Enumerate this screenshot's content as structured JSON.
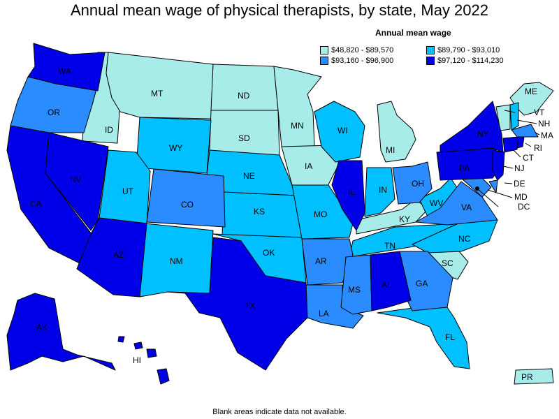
{
  "title": "Annual mean wage of physical therapists, by state, May 2022",
  "legend": {
    "title": "Annual mean wage",
    "items": [
      {
        "label": "$48,820 - $89,570",
        "color": "#a8ecea"
      },
      {
        "label": "$89,790 - $93,010",
        "color": "#00c0ff"
      },
      {
        "label": "$93,160 - $96,900",
        "color": "#2b8cff"
      },
      {
        "label": "$97,120 - $114,230",
        "color": "#0000e8"
      }
    ]
  },
  "footnote": "Blank areas indicate data not available.",
  "states": {
    "WA": "WA",
    "OR": "OR",
    "CA": "CA",
    "NV": "NV",
    "ID": "ID",
    "MT": "MT",
    "WY": "WY",
    "UT": "UT",
    "AZ": "AZ",
    "CO": "CO",
    "NM": "NM",
    "ND": "ND",
    "SD": "SD",
    "NE": "NE",
    "KS": "KS",
    "OK": "OK",
    "TX": "TX",
    "MN": "MN",
    "IA": "IA",
    "MO": "MO",
    "AR": "AR",
    "LA": "LA",
    "WI": "WI",
    "IL": "IL",
    "MI": "MI",
    "IN": "IN",
    "OH": "OH",
    "KY": "KY",
    "TN": "TN",
    "MS": "MS",
    "AL": "AL",
    "GA": "GA",
    "FL": "FL",
    "SC": "SC",
    "NC": "NC",
    "VA": "VA",
    "WV": "WV",
    "PA": "PA",
    "NY": "NY",
    "ME": "ME",
    "VT": "VT",
    "NH": "NH",
    "MA": "MA",
    "RI": "RI",
    "CT": "CT",
    "NJ": "NJ",
    "DE": "DE",
    "MD": "MD",
    "DC": "DC",
    "AK": "AK",
    "HI": "HI",
    "PR": "PR"
  }
}
